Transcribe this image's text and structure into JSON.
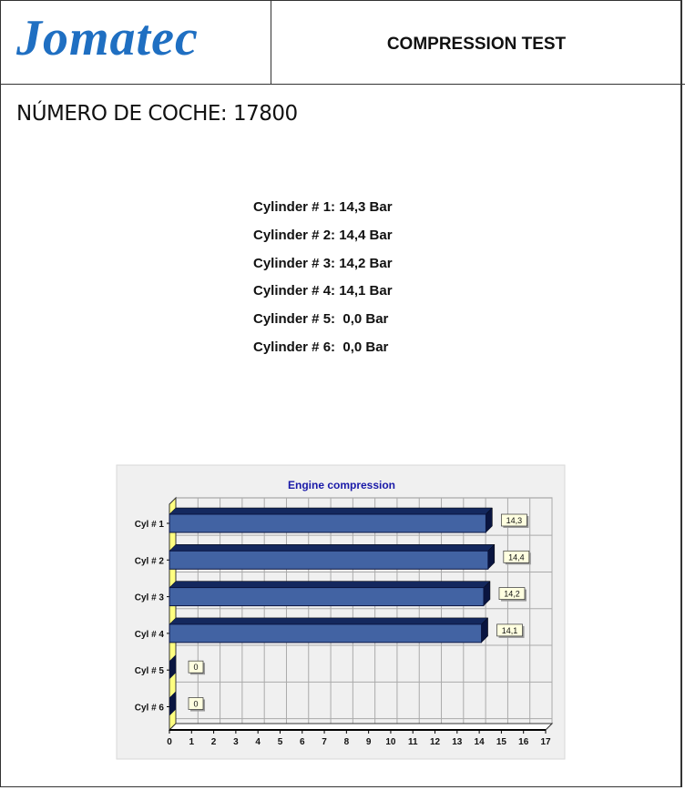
{
  "header": {
    "logo_text": "Jomatec",
    "title": "COMPRESSION TEST"
  },
  "car_number_label": "NÚMERO DE COCHE: 17800",
  "readings": [
    "Cylinder # 1: 14,3 Bar",
    "Cylinder # 2: 14,4 Bar",
    "Cylinder # 3: 14,2 Bar",
    "Cylinder # 4: 14,1 Bar",
    "Cylinder # 5:  0,0 Bar",
    "Cylinder # 6:  0,0 Bar"
  ],
  "chart_data": {
    "type": "bar",
    "orientation": "horizontal",
    "title": "Engine compression",
    "categories": [
      "Cyl # 1",
      "Cyl # 2",
      "Cyl # 3",
      "Cyl # 4",
      "Cyl # 5",
      "Cyl # 6"
    ],
    "values": [
      14.3,
      14.4,
      14.2,
      14.1,
      0,
      0
    ],
    "data_labels": [
      "14,3",
      "14,4",
      "14,2",
      "14,1",
      "0",
      "0"
    ],
    "xlim": [
      0,
      17
    ],
    "x_ticks": [
      "0",
      "1",
      "2",
      "3",
      "4",
      "5",
      "6",
      "7",
      "8",
      "9",
      "10",
      "11",
      "12",
      "13",
      "14",
      "15",
      "16",
      "17"
    ],
    "grid": true,
    "colors": {
      "bar_front": "#4263a3",
      "bar_top": "#14285e",
      "bar_side": "#0a1540",
      "title": "#1a1aa8",
      "background": "#f0f0f0",
      "label_box": "#ffffe0",
      "wall": "#ffff80"
    }
  }
}
